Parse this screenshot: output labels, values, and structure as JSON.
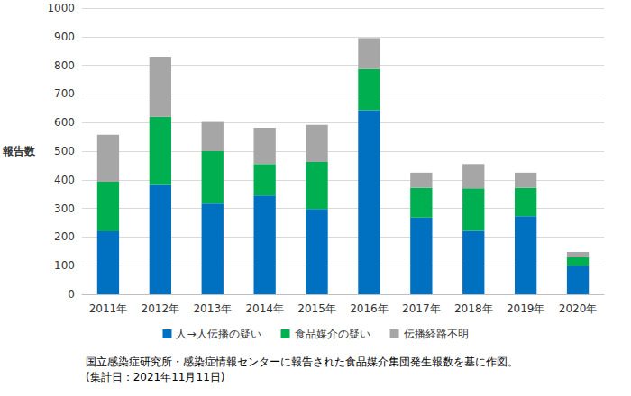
{
  "chart_data": {
    "type": "bar",
    "stacked": true,
    "grid": true,
    "legend": "bottom",
    "y_label": "報告数",
    "categories": [
      "2011年",
      "2012年",
      "2013年",
      "2014年",
      "2015年",
      "2016年",
      "2017年",
      "2018年",
      "2019年",
      "2020年"
    ],
    "series": [
      {
        "name": "人→人伝播の疑い",
        "color": "#0070c0",
        "values": [
          220,
          382,
          317,
          345,
          298,
          643,
          268,
          222,
          273,
          100
        ]
      },
      {
        "name": "食品媒介の疑い",
        "color": "#00b050",
        "values": [
          173,
          238,
          183,
          110,
          164,
          144,
          104,
          148,
          99,
          30
        ]
      },
      {
        "name": "伝播経路不明",
        "color": "#a6a6a6",
        "values": [
          164,
          210,
          102,
          127,
          130,
          108,
          53,
          85,
          53,
          18
        ]
      }
    ],
    "ylim": [
      0,
      1000
    ],
    "yticks": [
      0,
      100,
      200,
      300,
      400,
      500,
      600,
      700,
      800,
      900,
      1000
    ],
    "annotations": [
      "国立感染症研究所・感染症情報センターに報告された食品媒介集団発生報数を基に作図。",
      "(集計日：2021年11月11日)"
    ]
  }
}
